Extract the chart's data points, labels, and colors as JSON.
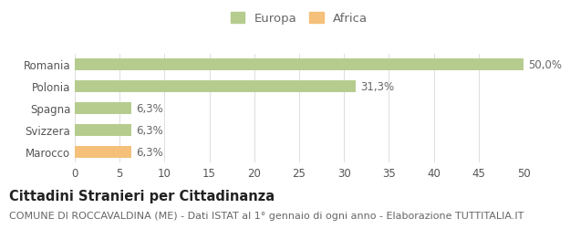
{
  "categories": [
    "Romania",
    "Polonia",
    "Spagna",
    "Svizzera",
    "Marocco"
  ],
  "values": [
    50.0,
    31.3,
    6.3,
    6.3,
    6.3
  ],
  "labels": [
    "50,0%",
    "31,3%",
    "6,3%",
    "6,3%",
    "6,3%"
  ],
  "colors": [
    "#b5cc8e",
    "#b5cc8e",
    "#b5cc8e",
    "#b5cc8e",
    "#f5c07a"
  ],
  "legend_items": [
    {
      "label": "Europa",
      "color": "#b5cc8e"
    },
    {
      "label": "Africa",
      "color": "#f5c07a"
    }
  ],
  "xlim": [
    0,
    50
  ],
  "xticks": [
    0,
    5,
    10,
    15,
    20,
    25,
    30,
    35,
    40,
    45,
    50
  ],
  "title": "Cittadini Stranieri per Cittadinanza",
  "subtitle": "COMUNE DI ROCCAVALDINA (ME) - Dati ISTAT al 1° gennaio di ogni anno - Elaborazione TUTTITALIA.IT",
  "background_color": "#ffffff",
  "bar_height": 0.55,
  "title_fontsize": 10.5,
  "subtitle_fontsize": 8,
  "tick_fontsize": 8.5,
  "label_fontsize": 8.5,
  "legend_fontsize": 9.5
}
